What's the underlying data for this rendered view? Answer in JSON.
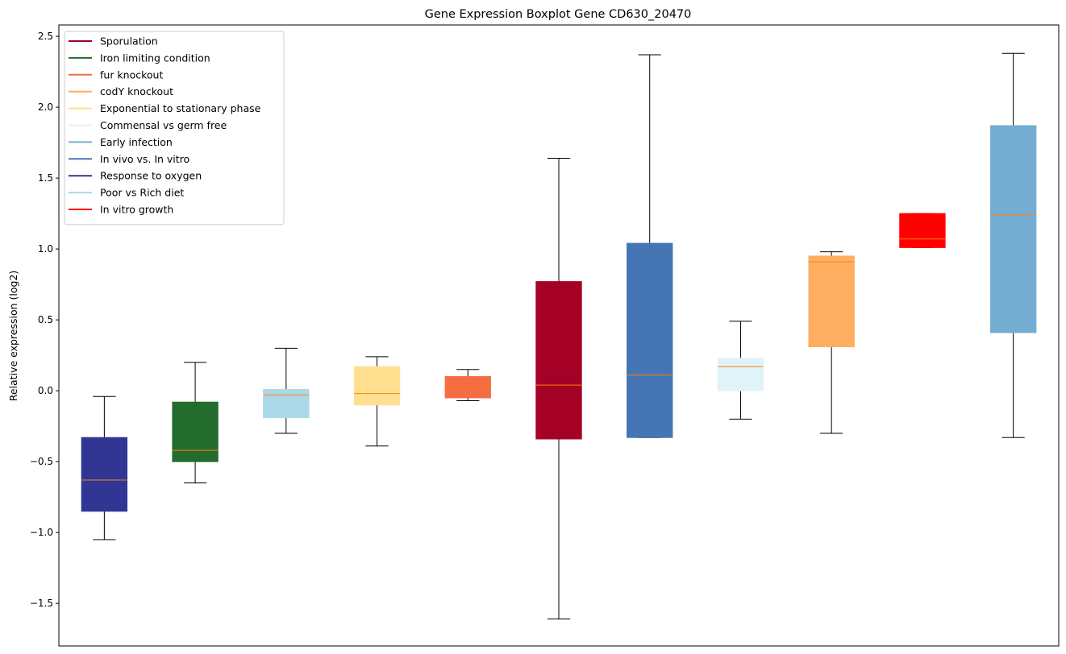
{
  "chart_data": {
    "type": "boxplot",
    "title": "Gene Expression Boxplot Gene CD630_20470",
    "xlabel": "",
    "ylabel": "Relative expression (log2)",
    "ylim": [
      -1.8,
      2.58
    ],
    "yticks": [
      2.5,
      2.0,
      1.5,
      1.0,
      0.5,
      0.0,
      -0.5,
      -1.0,
      -1.5
    ],
    "ytick_labels": [
      "2.5",
      "2.0",
      "1.5",
      "1.0",
      "0.5",
      "0.0",
      "−0.5",
      "−1.0",
      "−1.5"
    ],
    "legend_position": "upper-left",
    "legend": [
      {
        "label": "Sporulation",
        "color": "#a50026"
      },
      {
        "label": "Iron limiting condition",
        "color": "#246b2e"
      },
      {
        "label": "fur knockout",
        "color": "#f46d43"
      },
      {
        "label": "codY knockout",
        "color": "#fdae61"
      },
      {
        "label": "Exponential to stationary phase",
        "color": "#fee090"
      },
      {
        "label": "Commensal vs germ free",
        "color": "#e0f3f8"
      },
      {
        "label": "Early infection",
        "color": "#74add1"
      },
      {
        "label": "In vivo vs. In vitro",
        "color": "#4575b4"
      },
      {
        "label": "Response to oxygen",
        "color": "#313695"
      },
      {
        "label": "Poor vs Rich diet",
        "color": "#abd9e9"
      },
      {
        "label": "In vitro growth",
        "color": "#ff0000"
      }
    ],
    "median_color": "#ff7f0e",
    "boxes": [
      {
        "group": "Response to oxygen",
        "color": "#313695",
        "whisker_low": -1.05,
        "q1": -0.85,
        "median": -0.63,
        "q3": -0.33,
        "whisker_high": -0.04
      },
      {
        "group": "Iron limiting condition",
        "color": "#246b2e",
        "whisker_low": -0.65,
        "q1": -0.5,
        "median": -0.42,
        "q3": -0.08,
        "whisker_high": 0.2
      },
      {
        "group": "Poor vs Rich diet",
        "color": "#abd9e9",
        "whisker_low": -0.3,
        "q1": -0.19,
        "median": -0.03,
        "q3": 0.01,
        "whisker_high": 0.3
      },
      {
        "group": "Exponential to stationary phase",
        "color": "#fee090",
        "whisker_low": -0.39,
        "q1": -0.1,
        "median": -0.02,
        "q3": 0.17,
        "whisker_high": 0.24
      },
      {
        "group": "fur knockout",
        "color": "#f46d43",
        "whisker_low": -0.07,
        "q1": -0.05,
        "median": 0.02,
        "q3": 0.1,
        "whisker_high": 0.15
      },
      {
        "group": "Sporulation",
        "color": "#a50026",
        "whisker_low": -1.61,
        "q1": -0.34,
        "median": 0.04,
        "q3": 0.77,
        "whisker_high": 1.64
      },
      {
        "group": "In vivo vs. In vitro",
        "color": "#4575b4",
        "whisker_low": -0.33,
        "q1": -0.33,
        "median": 0.11,
        "q3": 1.04,
        "whisker_high": 2.37
      },
      {
        "group": "Commensal vs germ free",
        "color": "#e0f3f8",
        "whisker_low": -0.2,
        "q1": 0.0,
        "median": 0.17,
        "q3": 0.23,
        "whisker_high": 0.49
      },
      {
        "group": "codY knockout",
        "color": "#fdae61",
        "whisker_low": -0.3,
        "q1": 0.31,
        "median": 0.91,
        "q3": 0.95,
        "whisker_high": 0.98
      },
      {
        "group": "In vitro growth",
        "color": "#ff0000",
        "whisker_low": 1.01,
        "q1": 1.01,
        "median": 1.07,
        "q3": 1.25,
        "whisker_high": 1.25
      },
      {
        "group": "Early infection",
        "color": "#74add1",
        "whisker_low": -0.33,
        "q1": 0.41,
        "median": 1.24,
        "q3": 1.87,
        "whisker_high": 2.38
      }
    ]
  }
}
